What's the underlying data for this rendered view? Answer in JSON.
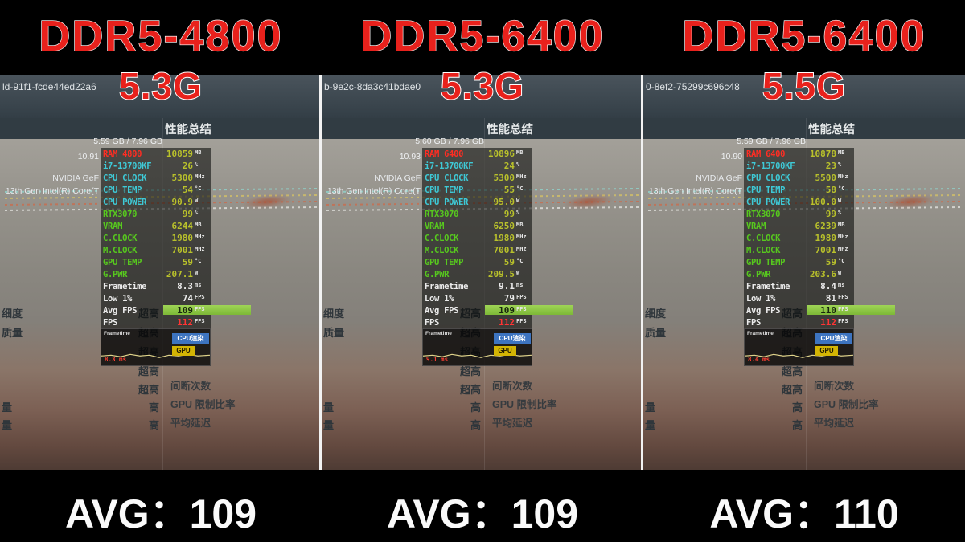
{
  "panels": [
    {
      "title": "DDR5-4800",
      "freq": "5.3G",
      "session_id": "ld-91f1-fcde44ed22a6",
      "summary_title": "性能总结",
      "vram_usage": "5.59 GB / 7.96 GB",
      "ram_usage": "10.91",
      "gpu_name_partial": "NVIDIA GeF",
      "cpu_name_partial": "13th Gen Intel(R) Core(T",
      "avg_label": "AVG：109",
      "osd_rows": [
        {
          "l": "RAM 4800",
          "v": "10859",
          "u": "MB",
          "lc": "red",
          "vc": "olive"
        },
        {
          "l": "i7-13700KF",
          "v": "26",
          "u": "%",
          "lc": "teal",
          "vc": "olive"
        },
        {
          "l": "CPU CLOCK",
          "v": "5300",
          "u": "MHz",
          "lc": "teal",
          "vc": "olive"
        },
        {
          "l": "CPU TEMP",
          "v": "54",
          "u": "°C",
          "lc": "teal",
          "vc": "olive"
        },
        {
          "l": "CPU POWER",
          "v": "90.9",
          "u": "W",
          "lc": "teal",
          "vc": "olive"
        },
        {
          "l": "RTX3070",
          "v": "99",
          "u": "%",
          "lc": "green",
          "vc": "olive"
        },
        {
          "l": "VRAM",
          "v": "6244",
          "u": "MB",
          "lc": "green",
          "vc": "olive"
        },
        {
          "l": "C.CLOCK",
          "v": "1980",
          "u": "MHz",
          "lc": "green",
          "vc": "olive"
        },
        {
          "l": "M.CLOCK",
          "v": "7001",
          "u": "MHz",
          "lc": "green",
          "vc": "olive"
        },
        {
          "l": "GPU TEMP",
          "v": "59",
          "u": "°C",
          "lc": "green",
          "vc": "olive"
        },
        {
          "l": "G.PWR",
          "v": "207.1",
          "u": "W",
          "lc": "green",
          "vc": "olive"
        },
        {
          "l": "Frametime",
          "v": "8.3",
          "u": "ms",
          "lc": "white",
          "vc": "white"
        },
        {
          "l": "Low 1%",
          "v": "74",
          "u": "FPS",
          "lc": "white",
          "vc": "white"
        },
        {
          "l": "Avg FPS",
          "v": "109",
          "u": "FPS",
          "lc": "white",
          "vc": "dark",
          "bar": true
        },
        {
          "l": "FPS",
          "v": "112",
          "u": "FPS",
          "lc": "white",
          "vc": "fpsred"
        }
      ],
      "graph": {
        "label": "Frametime",
        "ms": "8.3 ms",
        "cpu_badge": "CPU渲染",
        "gpu_badge": "GPU"
      }
    },
    {
      "title": "DDR5-6400",
      "freq": "5.3G",
      "session_id": "b-9e2c-8da3c41bdae0",
      "summary_title": "性能总结",
      "vram_usage": "5.60 GB / 7.96 GB",
      "ram_usage": "10.93",
      "gpu_name_partial": "NVIDIA GeF",
      "cpu_name_partial": "13th Gen Intel(R) Core(T",
      "avg_label": "AVG：109",
      "osd_rows": [
        {
          "l": "RAM 6400",
          "v": "10896",
          "u": "MB",
          "lc": "red",
          "vc": "olive"
        },
        {
          "l": "i7-13700KF",
          "v": "24",
          "u": "%",
          "lc": "teal",
          "vc": "olive"
        },
        {
          "l": "CPU CLOCK",
          "v": "5300",
          "u": "MHz",
          "lc": "teal",
          "vc": "olive"
        },
        {
          "l": "CPU TEMP",
          "v": "55",
          "u": "°C",
          "lc": "teal",
          "vc": "olive"
        },
        {
          "l": "CPU POWER",
          "v": "95.0",
          "u": "W",
          "lc": "teal",
          "vc": "olive"
        },
        {
          "l": "RTX3070",
          "v": "99",
          "u": "%",
          "lc": "green",
          "vc": "olive"
        },
        {
          "l": "VRAM",
          "v": "6250",
          "u": "MB",
          "lc": "green",
          "vc": "olive"
        },
        {
          "l": "C.CLOCK",
          "v": "1980",
          "u": "MHz",
          "lc": "green",
          "vc": "olive"
        },
        {
          "l": "M.CLOCK",
          "v": "7001",
          "u": "MHz",
          "lc": "green",
          "vc": "olive"
        },
        {
          "l": "GPU TEMP",
          "v": "59",
          "u": "°C",
          "lc": "green",
          "vc": "olive"
        },
        {
          "l": "G.PWR",
          "v": "209.5",
          "u": "W",
          "lc": "green",
          "vc": "olive"
        },
        {
          "l": "Frametime",
          "v": "9.1",
          "u": "ms",
          "lc": "white",
          "vc": "white"
        },
        {
          "l": "Low 1%",
          "v": "79",
          "u": "FPS",
          "lc": "white",
          "vc": "white"
        },
        {
          "l": "Avg FPS",
          "v": "109",
          "u": "FPS",
          "lc": "white",
          "vc": "dark",
          "bar": true
        },
        {
          "l": "FPS",
          "v": "112",
          "u": "FPS",
          "lc": "white",
          "vc": "fpsred"
        }
      ],
      "graph": {
        "label": "Frametime",
        "ms": "9.1 ms",
        "cpu_badge": "CPU渲染",
        "gpu_badge": "GPU"
      }
    },
    {
      "title": "DDR5-6400",
      "freq": "5.5G",
      "session_id": "0-8ef2-75299c696c48",
      "summary_title": "性能总结",
      "vram_usage": "5.59 GB / 7.96 GB",
      "ram_usage": "10.90",
      "gpu_name_partial": "NVIDIA GeF",
      "cpu_name_partial": "13th Gen Intel(R) Core(T",
      "avg_label": "AVG：110",
      "osd_rows": [
        {
          "l": "RAM 6400",
          "v": "10878",
          "u": "MB",
          "lc": "red",
          "vc": "olive"
        },
        {
          "l": "i7-13700KF",
          "v": "23",
          "u": "%",
          "lc": "teal",
          "vc": "olive"
        },
        {
          "l": "CPU CLOCK",
          "v": "5500",
          "u": "MHz",
          "lc": "teal",
          "vc": "olive"
        },
        {
          "l": "CPU TEMP",
          "v": "58",
          "u": "°C",
          "lc": "teal",
          "vc": "olive"
        },
        {
          "l": "CPU POWER",
          "v": "100.0",
          "u": "W",
          "lc": "teal",
          "vc": "olive"
        },
        {
          "l": "RTX3070",
          "v": "99",
          "u": "%",
          "lc": "green",
          "vc": "olive"
        },
        {
          "l": "VRAM",
          "v": "6239",
          "u": "MB",
          "lc": "green",
          "vc": "olive"
        },
        {
          "l": "C.CLOCK",
          "v": "1980",
          "u": "MHz",
          "lc": "green",
          "vc": "olive"
        },
        {
          "l": "M.CLOCK",
          "v": "7001",
          "u": "MHz",
          "lc": "green",
          "vc": "olive"
        },
        {
          "l": "GPU TEMP",
          "v": "59",
          "u": "°C",
          "lc": "green",
          "vc": "olive"
        },
        {
          "l": "G.PWR",
          "v": "203.6",
          "u": "W",
          "lc": "green",
          "vc": "olive"
        },
        {
          "l": "Frametime",
          "v": "8.4",
          "u": "ms",
          "lc": "white",
          "vc": "white"
        },
        {
          "l": "Low 1%",
          "v": "81",
          "u": "FPS",
          "lc": "white",
          "vc": "white"
        },
        {
          "l": "Avg FPS",
          "v": "110",
          "u": "FPS",
          "lc": "white",
          "vc": "dark",
          "bar": true
        },
        {
          "l": "FPS",
          "v": "112",
          "u": "FPS",
          "lc": "white",
          "vc": "fpsred"
        }
      ],
      "graph": {
        "label": "Frametime",
        "ms": "8.4 ms",
        "cpu_badge": "CPU渲染",
        "gpu_badge": "GPU"
      }
    }
  ],
  "settings_rows": [
    {
      "label": "细度",
      "value": "超高"
    },
    {
      "label": "质量",
      "value": "超高"
    },
    {
      "label": "",
      "value": "超高"
    },
    {
      "label": "",
      "value": "超高"
    },
    {
      "label": "",
      "value": "超高"
    },
    {
      "label": "量",
      "value": "高"
    },
    {
      "label": "量",
      "value": "高"
    }
  ],
  "summary_items": [
    "间断次数",
    "GPU 限制比率",
    "平均延迟"
  ]
}
